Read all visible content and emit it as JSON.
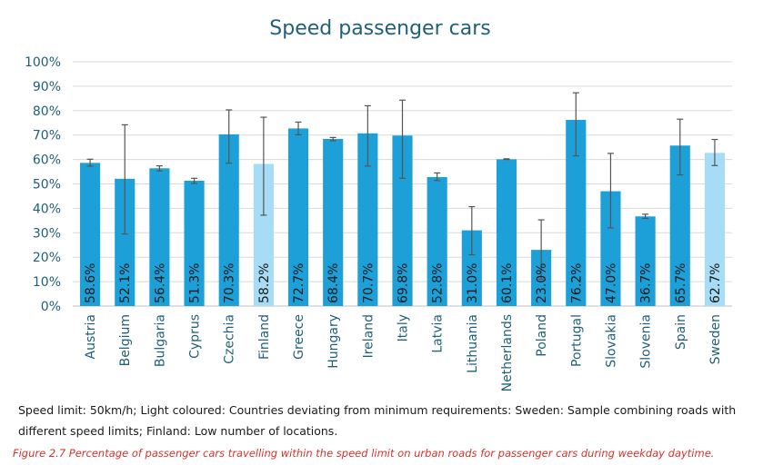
{
  "chart_data": {
    "type": "bar",
    "title": "Speed passenger cars",
    "xlabel": "",
    "ylabel": "",
    "ylim": [
      0,
      100
    ],
    "grid": true,
    "y_ticks": [
      "0%",
      "10%",
      "20%",
      "30%",
      "40%",
      "50%",
      "60%",
      "70%",
      "80%",
      "90%",
      "100%"
    ],
    "categories": [
      "Austria",
      "Belgium",
      "Bulgaria",
      "Cyprus",
      "Czechia",
      "Finland",
      "Greece",
      "Hungary",
      "Ireland",
      "Italy",
      "Latvia",
      "Lithuania",
      "Netherlands",
      "Poland",
      "Portugal",
      "Slovakia",
      "Slovenia",
      "Spain",
      "Sweden"
    ],
    "values": [
      58.6,
      52.1,
      56.4,
      51.3,
      70.3,
      58.2,
      72.7,
      68.4,
      70.7,
      69.8,
      52.8,
      31.0,
      60.1,
      23.0,
      76.2,
      47.0,
      36.7,
      65.7,
      62.7
    ],
    "data_labels": [
      "58.6%",
      "52.1%",
      "56.4%",
      "51.3%",
      "70.3%",
      "58.2%",
      "72.7%",
      "68.4%",
      "70.7%",
      "69.8%",
      "52.8%",
      "31.0%",
      "60.1%",
      "23.0%",
      "76.2%",
      "47.0%",
      "36.7%",
      "65.7%",
      "62.7%"
    ],
    "error_low": [
      57.3,
      29.5,
      55.3,
      50.2,
      58.5,
      37.2,
      70.1,
      67.7,
      57.3,
      52.3,
      51.4,
      21.0,
      60.0,
      11.0,
      61.5,
      32.0,
      35.9,
      53.7,
      57.5
    ],
    "error_high": [
      60.1,
      74.2,
      57.4,
      52.3,
      80.3,
      77.3,
      75.3,
      69.0,
      82.0,
      84.3,
      54.5,
      40.7,
      60.3,
      35.3,
      87.3,
      62.5,
      37.6,
      76.5,
      68.2
    ],
    "highlight": [
      false,
      false,
      false,
      false,
      false,
      true,
      false,
      false,
      false,
      false,
      false,
      false,
      false,
      false,
      false,
      false,
      false,
      false,
      true
    ],
    "colors": {
      "bar": "#1da0d8",
      "bar_light": "#a6dcf5",
      "error": "#555555",
      "grid": "#d9d9d9",
      "axis_text": "#1f5f7a",
      "title": "#1f5f7a",
      "data_label": "#1a1a1a"
    }
  },
  "note": "Speed limit: 50km/h; Light coloured: Countries deviating from minimum requirements: Sweden: Sample combining roads with different speed limits; Finland: Low number of locations.",
  "caption": "Figure 2.7 Percentage of passenger cars  travelling within the speed limit on urban roads for passenger cars during weekday daytime."
}
